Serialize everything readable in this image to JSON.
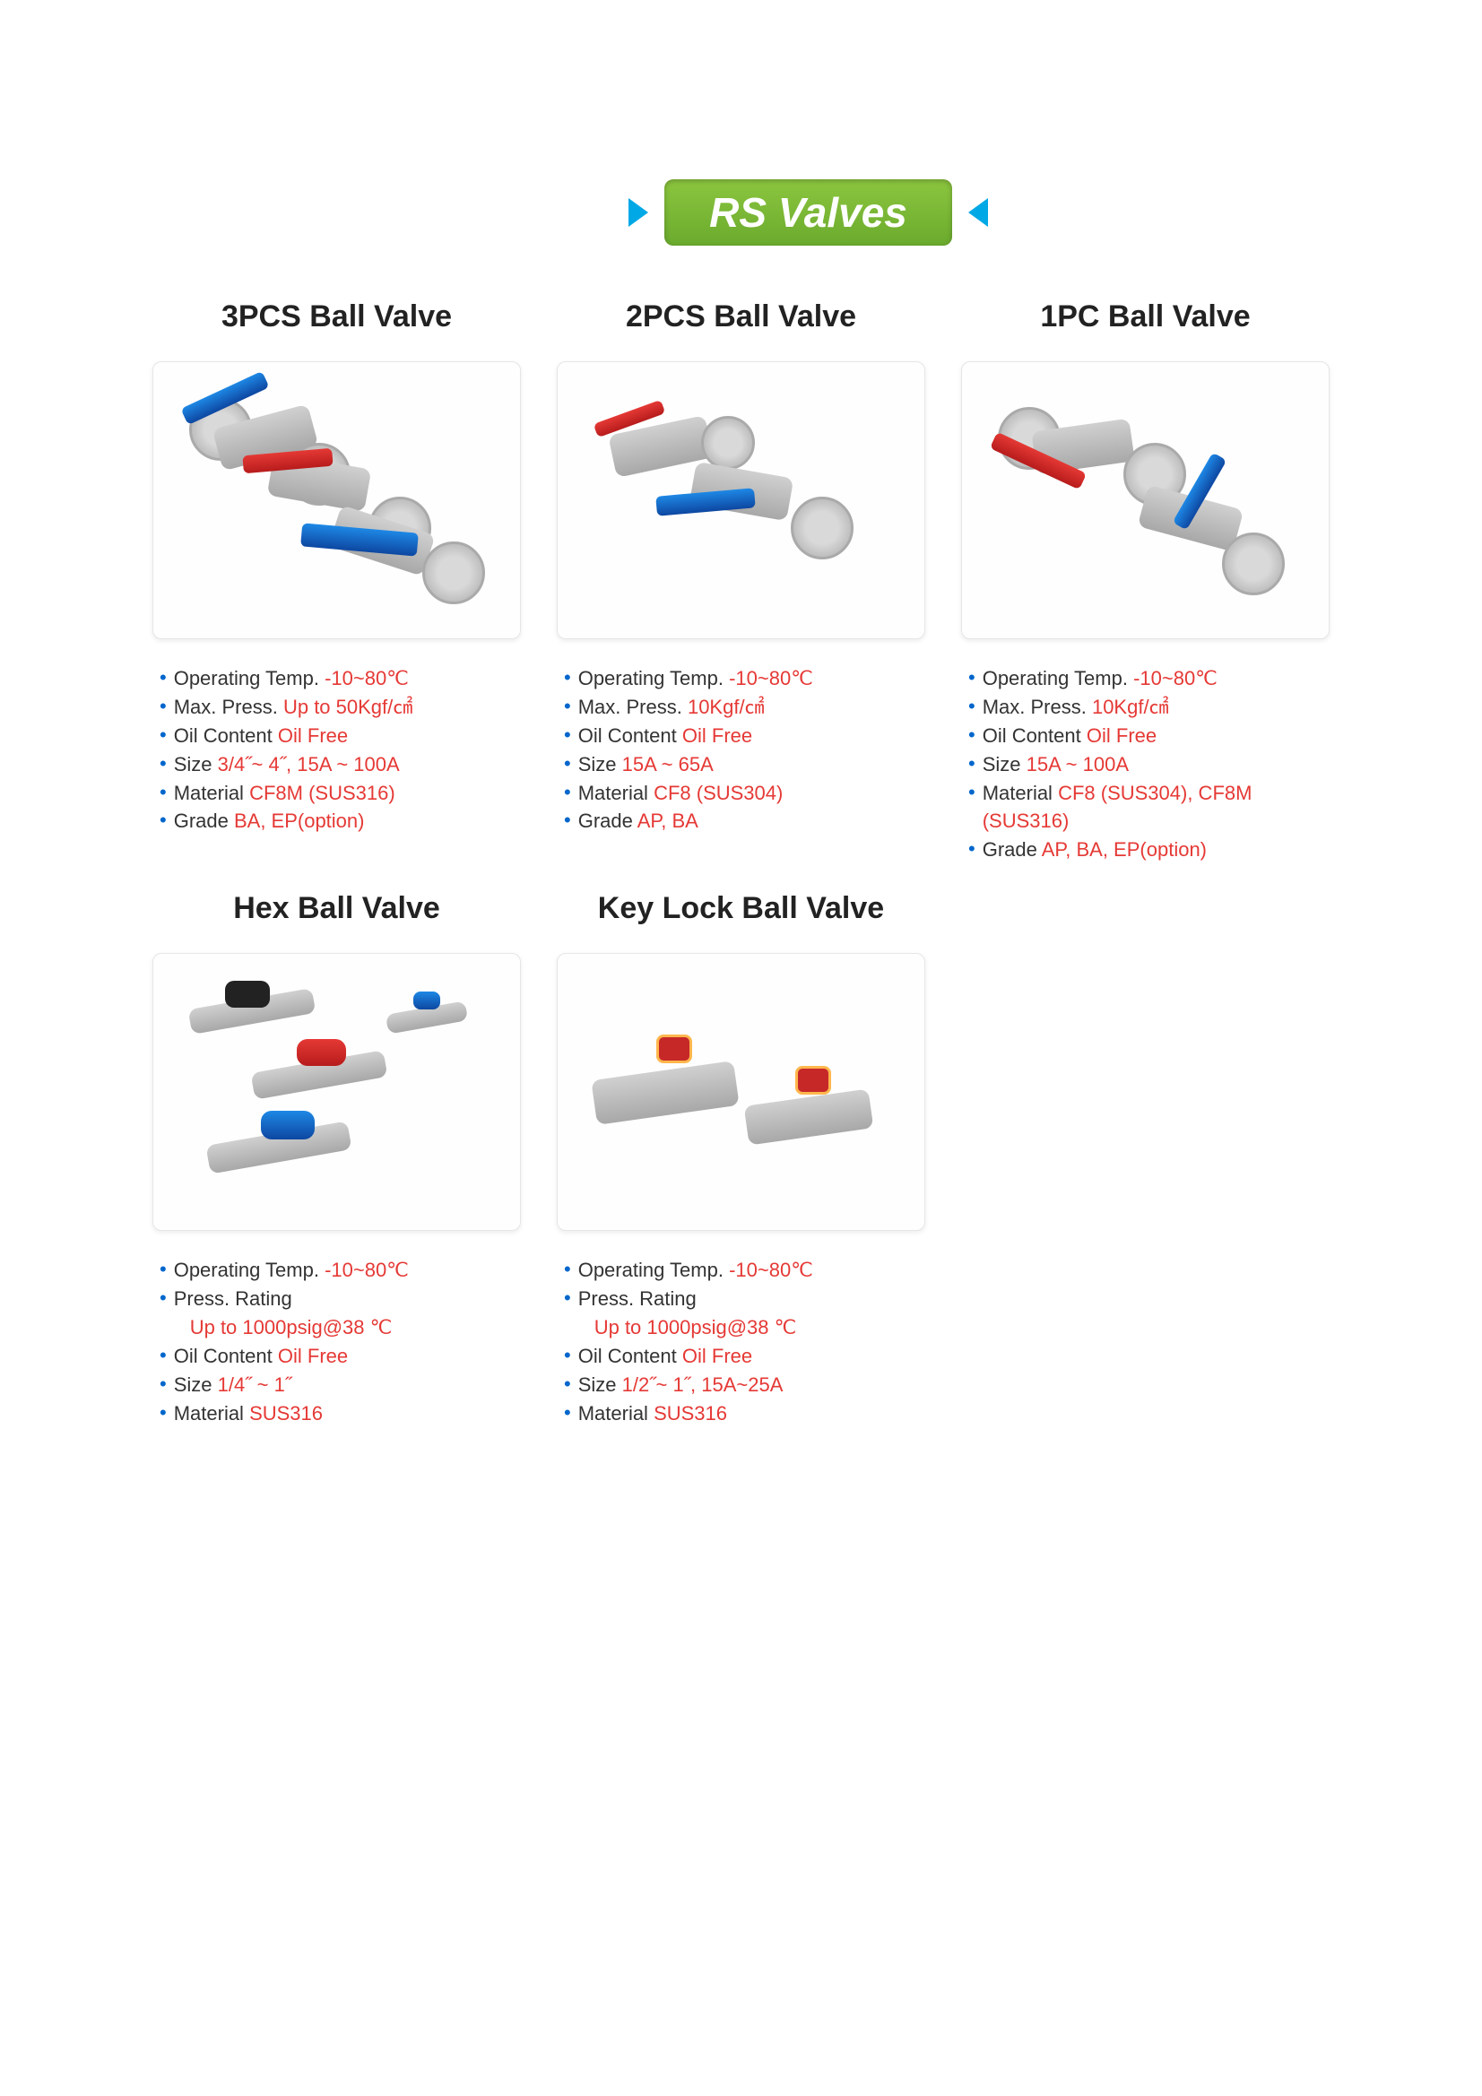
{
  "page": {
    "title": "RS Valves",
    "title_bg": "#7cb342",
    "accent_blue": "#00a8e6",
    "bullet_color": "#0066cc",
    "value_red": "#e53935"
  },
  "products": [
    {
      "name": "3PCS Ball Valve",
      "specs": [
        {
          "label": "Operating Temp.",
          "value": "-10~80℃"
        },
        {
          "label": "Max. Press.",
          "value": "Up to 50Kgf/㎠"
        },
        {
          "label": "Oil Content",
          "value": "Oil Free"
        },
        {
          "label": "Size",
          "value": "3/4˝~ 4˝, 15A ~ 100A"
        },
        {
          "label": "Material",
          "value": "CF8M (SUS316)"
        },
        {
          "label": "Grade",
          "value": "BA, EP(option)"
        }
      ]
    },
    {
      "name": "2PCS Ball Valve",
      "specs": [
        {
          "label": "Operating Temp.",
          "value": "-10~80℃"
        },
        {
          "label": "Max. Press.",
          "value": "10Kgf/㎠"
        },
        {
          "label": "Oil Content",
          "value": "Oil Free"
        },
        {
          "label": "Size",
          "value": "15A ~ 65A"
        },
        {
          "label": "Material",
          "value": "CF8 (SUS304)"
        },
        {
          "label": "Grade",
          "value": "AP, BA"
        }
      ]
    },
    {
      "name": "1PC Ball Valve",
      "specs": [
        {
          "label": "Operating Temp.",
          "value": "-10~80℃"
        },
        {
          "label": "Max. Press.",
          "value": "10Kgf/㎠"
        },
        {
          "label": "Oil Content",
          "value": "Oil Free"
        },
        {
          "label": "Size",
          "value": "15A ~ 100A"
        },
        {
          "label": "Material",
          "value": "CF8 (SUS304), CF8M (SUS316)"
        },
        {
          "label": "Grade",
          "value": "AP, BA, EP(option)"
        }
      ]
    },
    {
      "name": "Hex Ball Valve",
      "specs": [
        {
          "label": "Operating Temp.",
          "value": "-10~80℃"
        },
        {
          "label": "Press. Rating",
          "value": "Up to 1000psig@38 ℃",
          "break": true
        },
        {
          "label": "Oil Content",
          "value": "Oil Free"
        },
        {
          "label": "Size",
          "value": "1/4˝ ~ 1˝"
        },
        {
          "label": "Material",
          "value": "SUS316"
        }
      ]
    },
    {
      "name": "Key Lock Ball Valve",
      "specs": [
        {
          "label": "Operating Temp.",
          "value": "-10~80℃"
        },
        {
          "label": "Press. Rating",
          "value": "Up to 1000psig@38 ℃",
          "break": true
        },
        {
          "label": "Oil Content",
          "value": "Oil Free"
        },
        {
          "label": "Size",
          "value": "1/2˝~ 1˝, 15A~25A"
        },
        {
          "label": "Material",
          "value": "SUS316"
        }
      ]
    }
  ]
}
